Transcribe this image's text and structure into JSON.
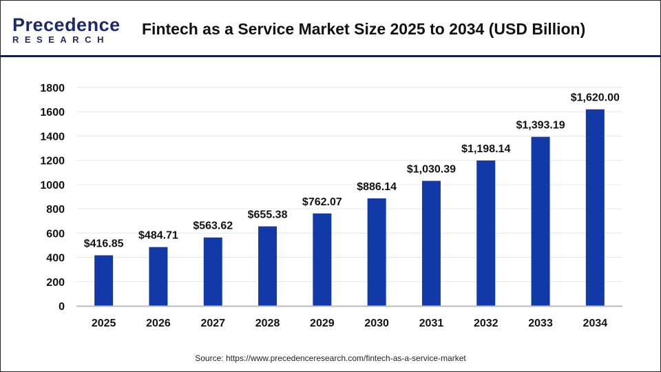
{
  "header": {
    "logo_top": "Precedence",
    "logo_bottom": "RESEARCH",
    "title": "Fintech as a Service Market Size 2025 to 2034 (USD Billion)"
  },
  "source": "Source: https://www.precedenceresearch.com/fintech-as-a-service-market",
  "chart_data": {
    "type": "bar",
    "title": "Fintech as a Service Market Size 2025 to 2034 (USD Billion)",
    "categories": [
      "2025",
      "2026",
      "2027",
      "2028",
      "2029",
      "2030",
      "2031",
      "2032",
      "2033",
      "2034"
    ],
    "values": [
      416.85,
      484.71,
      563.62,
      655.38,
      762.07,
      886.14,
      1030.39,
      1198.14,
      1393.19,
      1620.0
    ],
    "data_labels": [
      "$416.85",
      "$484.71",
      "$563.62",
      "$655.38",
      "$762.07",
      "$886.14",
      "$1,030.39",
      "$1,198.14",
      "$1,393.19",
      "$1,620.00"
    ],
    "ylim": [
      0,
      1800
    ],
    "yticks": [
      "0",
      "200",
      "400",
      "600",
      "800",
      "1000",
      "1200",
      "1400",
      "1600",
      "1800"
    ],
    "grid": true,
    "bar_color": "#1239a8",
    "xlabel": "",
    "ylabel": ""
  }
}
